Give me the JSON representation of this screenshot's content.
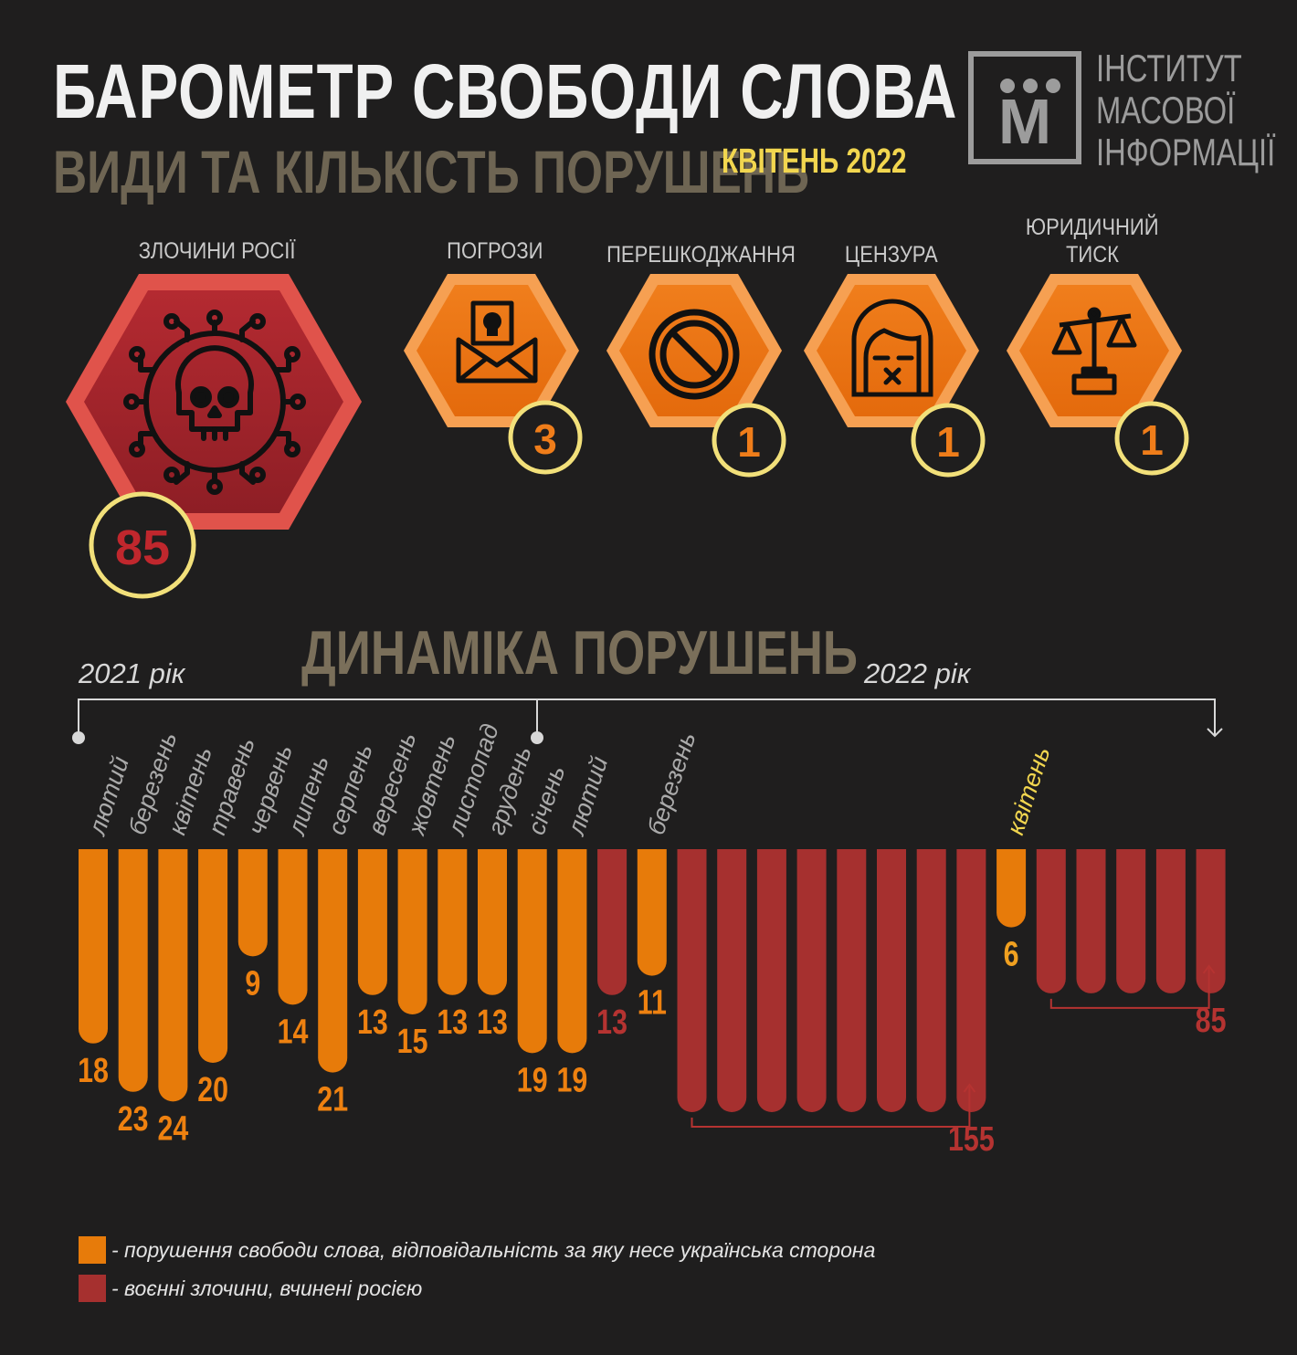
{
  "header": {
    "title": "БАРОМЕТР СВОБОДИ СЛОВА",
    "subtitle": "ВИДИ ТА КІЛЬКІСТЬ ПОРУШЕНЬ",
    "period": "КВІТЕНЬ 2022"
  },
  "logo": {
    "letter": "М",
    "lines": [
      "ІНСТИТУТ",
      "МАСОВОЇ",
      "ІНФОРМАЦІЇ"
    ]
  },
  "categories": [
    {
      "label_lines": [
        "ЗЛОЧИНИ РОСІЇ"
      ],
      "count": "85",
      "icon": "skull-virus-icon",
      "color": "#c0272d"
    },
    {
      "label_lines": [
        "ПОГРОЗИ"
      ],
      "count": "3",
      "icon": "threat-letter-icon",
      "color": "#ef7d1a"
    },
    {
      "label_lines": [
        "ПЕРЕШКОДЖАННЯ"
      ],
      "count": "1",
      "icon": "prohibited-icon",
      "color": "#ef7d1a"
    },
    {
      "label_lines": [
        "ЦЕНЗУРА"
      ],
      "count": "1",
      "icon": "censored-face-icon",
      "color": "#ef7d1a"
    },
    {
      "label_lines": [
        "ЮРИДИЧНИЙ",
        "ТИСК"
      ],
      "count": "1",
      "icon": "scales-icon",
      "color": "#ef7d1a"
    }
  ],
  "colors": {
    "ukrainian": "#e77b0a",
    "russian": "#a6302f",
    "highlight": "#f2d64f",
    "count_circle": "#f2e07a"
  },
  "dynamics": {
    "title": "ДИНАМІКА ПОРУШЕНЬ",
    "year_2021": "2021 рік",
    "year_2022": "2022 рік"
  },
  "chart_data": {
    "type": "bar",
    "title": "ДИНАМІКА ПОРУШЕНЬ",
    "orientation": "downward",
    "categories": [
      "лютий",
      "березень",
      "квітень",
      "травень",
      "червень",
      "липень",
      "серпень",
      "вересень",
      "жовтень",
      "листопад",
      "грудень",
      "січень",
      "лютий",
      "березень",
      "квітень"
    ],
    "bars": [
      {
        "month": "лютий",
        "value": 18,
        "type": "ukrainian",
        "label": "18"
      },
      {
        "month": "березень",
        "value": 23,
        "type": "ukrainian",
        "label": "23"
      },
      {
        "month": "квітень",
        "value": 24,
        "type": "ukrainian",
        "label": "24"
      },
      {
        "month": "травень",
        "value": 20,
        "type": "ukrainian",
        "label": "20"
      },
      {
        "month": "червень",
        "value": 9,
        "type": "ukrainian",
        "label": "9"
      },
      {
        "month": "липень",
        "value": 14,
        "type": "ukrainian",
        "label": "14"
      },
      {
        "month": "серпень",
        "value": 21,
        "type": "ukrainian",
        "label": "21"
      },
      {
        "month": "вересень",
        "value": 13,
        "type": "ukrainian",
        "label": "13"
      },
      {
        "month": "жовтень",
        "value": 15,
        "type": "ukrainian",
        "label": "15"
      },
      {
        "month": "листопад",
        "value": 13,
        "type": "ukrainian",
        "label": "13"
      },
      {
        "month": "грудень",
        "value": 13,
        "type": "ukrainian",
        "label": "13"
      },
      {
        "month": "січень",
        "value": 19,
        "type": "ukrainian",
        "label": "19"
      },
      {
        "month": "лютий",
        "value": 19,
        "type": "ukrainian",
        "label": "19"
      },
      {
        "month": "лютий",
        "value": 13,
        "type": "russian",
        "label": "13"
      },
      {
        "month": "березень",
        "value": 11,
        "type": "ukrainian",
        "label": "11"
      },
      {
        "month": "березень",
        "value": 155,
        "type": "russian",
        "label": "155",
        "group_size": 8
      },
      {
        "month": "квітень",
        "value": 6,
        "type": "ukrainian",
        "label": "6"
      },
      {
        "month": "квітень",
        "value": 85,
        "type": "russian",
        "label": "85",
        "group_size": 5
      }
    ],
    "series": [
      {
        "name": "- порушення свободи слова, відповідальність за яку несе українська сторона",
        "color": "#e77b0a"
      },
      {
        "name": "- воєнні злочини, вчинені росією",
        "color": "#a6302f"
      }
    ],
    "year_labels": [
      "2021 рік",
      "2022 рік"
    ]
  },
  "legend": {
    "ukrainian": "- порушення свободи слова, відповідальність за яку несе українська сторона",
    "russian": "- воєнні злочини, вчинені росією"
  }
}
